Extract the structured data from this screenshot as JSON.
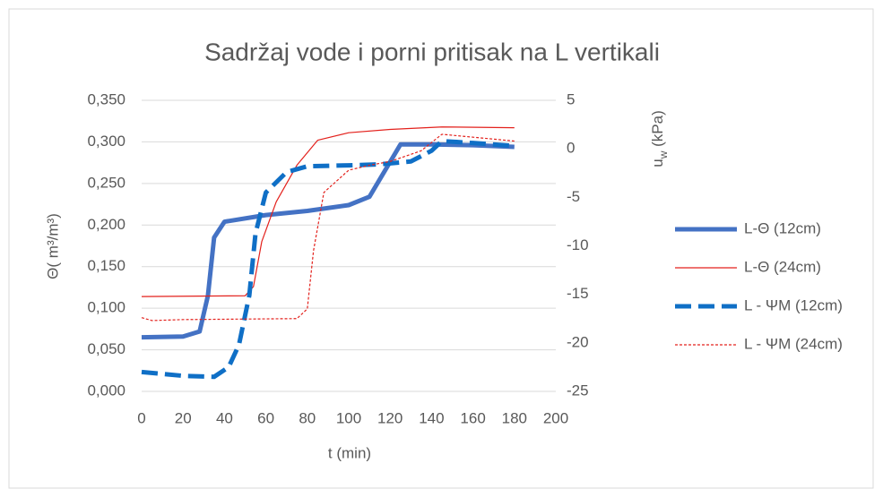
{
  "chart_data": {
    "type": "line",
    "title": "Sadržaj vode i porni pritisak na L vertikali",
    "xlabel": "t (min)",
    "ylabel": "Θ( m³/m³)",
    "y2label": "u",
    "y2label_sub": "w",
    "y2label_unit": " (kPa)",
    "xlim": [
      0,
      200
    ],
    "xticks": [
      0,
      20,
      40,
      60,
      80,
      100,
      120,
      140,
      160,
      180,
      200
    ],
    "ylim": [
      0,
      0.35
    ],
    "yticks": [
      {
        "value": 0,
        "label": "0,000"
      },
      {
        "value": 0.05,
        "label": "0,050"
      },
      {
        "value": 0.1,
        "label": "0,100"
      },
      {
        "value": 0.15,
        "label": "0,150"
      },
      {
        "value": 0.2,
        "label": "0,200"
      },
      {
        "value": 0.25,
        "label": "0,250"
      },
      {
        "value": 0.3,
        "label": "0,300"
      },
      {
        "value": 0.35,
        "label": "0,350"
      }
    ],
    "y2lim": [
      -25,
      5
    ],
    "y2ticks": [
      -25,
      -20,
      -15,
      -10,
      -5,
      0,
      5
    ],
    "grid": true,
    "legend": "right",
    "series": [
      {
        "name": "L-Θ (12cm)",
        "color": "#4472c4",
        "style": "solid",
        "width": 5,
        "axis": "y",
        "x": [
          0,
          20,
          28,
          32,
          35,
          40,
          60,
          80,
          100,
          110,
          115,
          125,
          140,
          160,
          180
        ],
        "values": [
          0.065,
          0.066,
          0.072,
          0.115,
          0.185,
          0.204,
          0.212,
          0.217,
          0.224,
          0.234,
          0.255,
          0.297,
          0.297,
          0.296,
          0.294
        ]
      },
      {
        "name": "L-Θ (24cm)",
        "color": "#e3211c",
        "style": "solid",
        "width": 1.2,
        "axis": "y",
        "x": [
          0,
          50,
          54,
          58,
          65,
          75,
          85,
          100,
          120,
          145,
          180
        ],
        "values": [
          0.114,
          0.115,
          0.126,
          0.18,
          0.228,
          0.272,
          0.302,
          0.311,
          0.315,
          0.318,
          0.317
        ]
      },
      {
        "name": "L - ΨM (12cm)",
        "color": "#0f6fc6",
        "style": "dashed",
        "width": 5,
        "axis": "y2",
        "x": [
          0,
          20,
          35,
          42,
          47,
          52,
          55,
          60,
          70,
          80,
          100,
          115,
          130,
          140,
          145,
          160,
          180
        ],
        "values": [
          -23.0,
          -23.4,
          -23.5,
          -22.5,
          -20.2,
          -15.1,
          -8.7,
          -4.5,
          -2.4,
          -1.8,
          -1.7,
          -1.6,
          -1.3,
          -0.2,
          0.8,
          0.6,
          0.3
        ]
      },
      {
        "name": "L - ΨM (24cm)",
        "color": "#e3211c",
        "style": "dotted",
        "width": 1.2,
        "axis": "y2",
        "x": [
          0,
          5,
          20,
          75,
          80,
          83,
          88,
          100,
          110,
          120,
          135,
          145,
          160,
          180
        ],
        "values": [
          -17.4,
          -17.7,
          -17.6,
          -17.5,
          -16.5,
          -10.5,
          -4.5,
          -2.2,
          -1.7,
          -1.3,
          -0.2,
          1.5,
          1.2,
          0.8
        ]
      }
    ]
  }
}
